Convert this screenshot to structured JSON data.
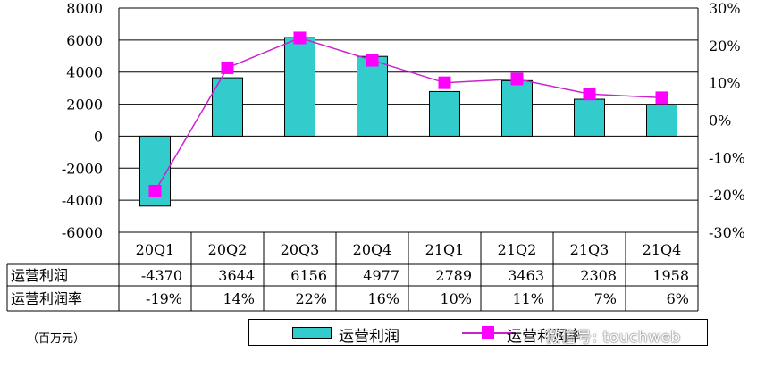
{
  "chart_data": {
    "type": "bar",
    "categories": [
      "20Q1",
      "20Q2",
      "20Q3",
      "20Q4",
      "21Q1",
      "21Q2",
      "21Q3",
      "21Q4"
    ],
    "series": [
      {
        "name": "运营利润",
        "type": "bar",
        "axis": "left",
        "values": [
          -4370,
          3644,
          6156,
          4977,
          2789,
          3463,
          2308,
          1958
        ],
        "color": "#33cccc"
      },
      {
        "name": "运营利润率",
        "type": "line",
        "axis": "right",
        "values": [
          -19,
          14,
          22,
          16,
          10,
          11,
          7,
          6
        ],
        "color": "#ff00ff"
      }
    ],
    "left_axis": {
      "ylim": [
        -6000,
        8000
      ],
      "ticks": [
        "8000",
        "6000",
        "4000",
        "2000",
        "0",
        "-2000",
        "-4000",
        "-6000"
      ]
    },
    "right_axis": {
      "ylim": [
        -30,
        30
      ],
      "ticks": [
        "30%",
        "20%",
        "10%",
        "0%",
        "-10%",
        "-20%",
        "-30%"
      ]
    },
    "grid": true,
    "legend_position": "bottom"
  },
  "table": {
    "rows": [
      {
        "label": "运营利润",
        "values": [
          "-4370",
          "3644",
          "6156",
          "4977",
          "2789",
          "3463",
          "2308",
          "1958"
        ]
      },
      {
        "label": "运营利润率",
        "values": [
          "-19%",
          "14%",
          "22%",
          "16%",
          "10%",
          "11%",
          "7%",
          "6%"
        ]
      }
    ]
  },
  "unit_label": "（百万元）",
  "legend": {
    "bar_label": "运营利润",
    "line_label": "运营利润率"
  },
  "watermark": "微信号: touchweb",
  "colors": {
    "bar": "#33cccc",
    "line": "#cc22cc",
    "marker": "#ff00ff"
  }
}
